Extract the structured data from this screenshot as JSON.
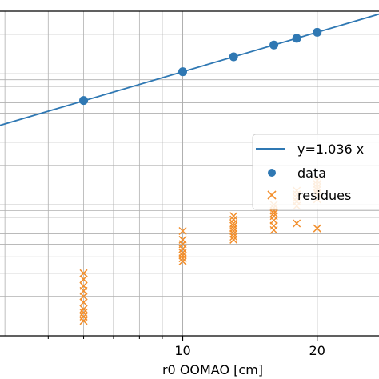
{
  "chart_data": {
    "type": "scatter",
    "xlabel": "r0 OOMAO [cm]",
    "ylabel": "",
    "x_scale": "log",
    "y_scale": "log",
    "xlim": [
      3.9,
      27.5
    ],
    "ylim": [
      0.1,
      30
    ],
    "grid": true,
    "x_tick_labels": [
      "10",
      "20"
    ],
    "legend_position": "center-right",
    "colors": {
      "fit": "#2f78b3",
      "data": "#2f78b3",
      "residues": "#f28e2b",
      "grid": "#b0b0b0"
    },
    "fit": {
      "name": "y=1.036 x",
      "slope": 1.036,
      "x_range": [
        3.9,
        27.5
      ]
    },
    "series": [
      {
        "name": "data",
        "marker": "circle",
        "x": [
          6,
          10,
          13,
          16,
          18,
          20
        ],
        "y": [
          6.25,
          10.36,
          13.47,
          16.58,
          18.65,
          20.72
        ]
      },
      {
        "name": "residues",
        "marker": "x",
        "points": [
          [
            6,
            0.3
          ],
          [
            6,
            0.27
          ],
          [
            6,
            0.24
          ],
          [
            6,
            0.22
          ],
          [
            6,
            0.2
          ],
          [
            6,
            0.18
          ],
          [
            6,
            0.16
          ],
          [
            6,
            0.15
          ],
          [
            6,
            0.14
          ],
          [
            6,
            0.13
          ],
          [
            10,
            0.63
          ],
          [
            10,
            0.54
          ],
          [
            10,
            0.5
          ],
          [
            10,
            0.46
          ],
          [
            10,
            0.43
          ],
          [
            10,
            0.41
          ],
          [
            10,
            0.39
          ],
          [
            10,
            0.37
          ],
          [
            13,
            0.82
          ],
          [
            13,
            0.77
          ],
          [
            13,
            0.72
          ],
          [
            13,
            0.69
          ],
          [
            13,
            0.66
          ],
          [
            13,
            0.63
          ],
          [
            13,
            0.6
          ],
          [
            13,
            0.57
          ],
          [
            13,
            0.54
          ],
          [
            16,
            1.0
          ],
          [
            16,
            0.95
          ],
          [
            16,
            0.9
          ],
          [
            16,
            0.86
          ],
          [
            16,
            0.82
          ],
          [
            16,
            0.76
          ],
          [
            16,
            0.69
          ],
          [
            16,
            0.64
          ],
          [
            18,
            1.28
          ],
          [
            18,
            1.2
          ],
          [
            18,
            1.13
          ],
          [
            18,
            1.06
          ],
          [
            18,
            0.98
          ],
          [
            18,
            0.72
          ],
          [
            20,
            1.53
          ],
          [
            20,
            1.44
          ],
          [
            20,
            1.36
          ],
          [
            20,
            1.3
          ],
          [
            20,
            1.22
          ],
          [
            20,
            1.1
          ],
          [
            20,
            0.66
          ]
        ]
      }
    ]
  }
}
